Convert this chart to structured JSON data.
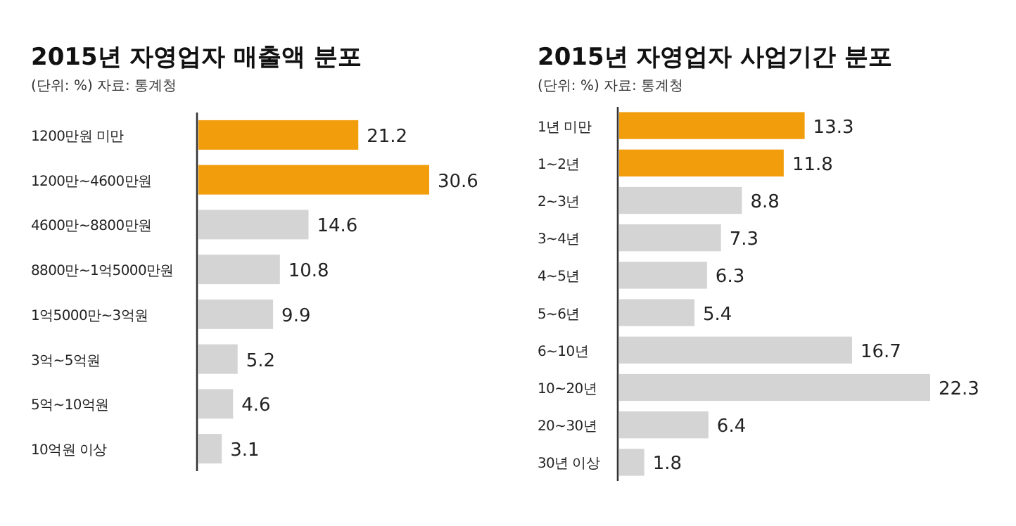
{
  "chart_data": [
    {
      "type": "bar",
      "orientation": "horizontal",
      "title": "2015년 자영업자 매출액 분포",
      "subtitle": "(단위: %)  자료: 통계청",
      "data_labels": true,
      "categories": [
        "1200만원 미만",
        "1200만~4600만원",
        "4600만~8800만원",
        "8800만~1억5000만원",
        "1억5000만~3억원",
        "3억~5억원",
        "5억~10억원",
        "10억원 이상"
      ],
      "values": [
        21.2,
        30.6,
        14.6,
        10.8,
        9.9,
        5.2,
        4.6,
        3.1
      ],
      "colors": [
        "#f29e0c",
        "#f29e0c",
        "#d4d4d4",
        "#d4d4d4",
        "#d4d4d4",
        "#d4d4d4",
        "#d4d4d4",
        "#d4d4d4"
      ]
    },
    {
      "type": "bar",
      "orientation": "horizontal",
      "title": "2015년 자영업자 사업기간 분포",
      "subtitle": "(단위: %)  자료: 통계청",
      "data_labels": true,
      "categories": [
        "1년 미만",
        "1~2년",
        "2~3년",
        "3~4년",
        "4~5년",
        "5~6년",
        "6~10년",
        "10~20년",
        "20~30년",
        "30년 이상"
      ],
      "values": [
        13.3,
        11.8,
        8.8,
        7.3,
        6.3,
        5.4,
        16.7,
        22.3,
        6.4,
        1.8
      ],
      "colors": [
        "#f29e0c",
        "#f29e0c",
        "#d4d4d4",
        "#d4d4d4",
        "#d4d4d4",
        "#d4d4d4",
        "#d4d4d4",
        "#d4d4d4",
        "#d4d4d4",
        "#d4d4d4"
      ]
    }
  ]
}
